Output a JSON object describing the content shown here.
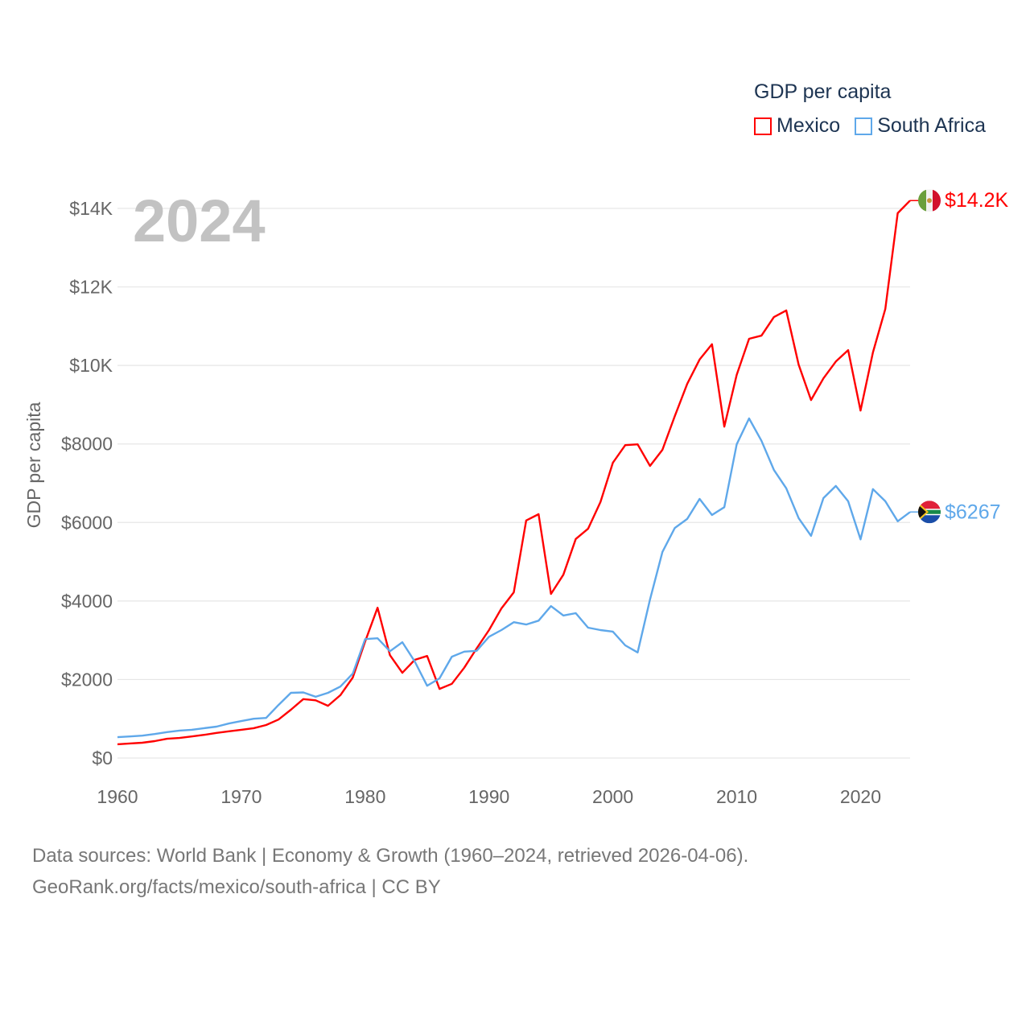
{
  "chart_data": {
    "type": "line",
    "title": "2024",
    "ylabel": "GDP per capita",
    "xlabel": "",
    "xlim": [
      1960,
      2024
    ],
    "ylim": [
      0,
      14000
    ],
    "grid": true,
    "x_ticks": [
      1960,
      1970,
      1980,
      1990,
      2000,
      2010,
      2020
    ],
    "x_tick_labels": [
      "1960",
      "1970",
      "1980",
      "1990",
      "2000",
      "2010",
      "2020"
    ],
    "y_ticks": [
      0,
      2000,
      4000,
      6000,
      8000,
      10000,
      12000,
      14000
    ],
    "y_tick_labels": [
      "$0",
      "$2000",
      "$4000",
      "$6000",
      "$8000",
      "$10K",
      "$12K",
      "$14K"
    ],
    "legend": {
      "title": "GDP per capita",
      "placement": "top-right"
    },
    "x": [
      1960,
      1961,
      1962,
      1963,
      1964,
      1965,
      1966,
      1967,
      1968,
      1969,
      1970,
      1971,
      1972,
      1973,
      1974,
      1975,
      1976,
      1977,
      1978,
      1979,
      1980,
      1981,
      1982,
      1983,
      1984,
      1985,
      1986,
      1987,
      1988,
      1989,
      1990,
      1991,
      1992,
      1993,
      1994,
      1995,
      1996,
      1997,
      1998,
      1999,
      2000,
      2001,
      2002,
      2003,
      2004,
      2005,
      2006,
      2007,
      2008,
      2009,
      2010,
      2011,
      2012,
      2013,
      2014,
      2015,
      2016,
      2017,
      2018,
      2019,
      2020,
      2021,
      2022,
      2023,
      2024
    ],
    "series": [
      {
        "name": "Mexico",
        "color": "#ff0000",
        "end_label": "$14.2K",
        "flag": "mexico-flag",
        "values": [
          350,
          370,
          390,
          430,
          490,
          510,
          550,
          590,
          640,
          680,
          720,
          760,
          840,
          980,
          1230,
          1500,
          1470,
          1330,
          1600,
          2050,
          2970,
          3830,
          2620,
          2170,
          2500,
          2600,
          1760,
          1890,
          2300,
          2790,
          3260,
          3810,
          4220,
          6050,
          6210,
          4180,
          4670,
          5580,
          5840,
          6520,
          7520,
          7970,
          7990,
          7440,
          7850,
          8710,
          9530,
          10150,
          10540,
          8440,
          9760,
          10680,
          10760,
          11230,
          11400,
          10020,
          9120,
          9670,
          10100,
          10390,
          8850,
          10330,
          11440,
          13880,
          14200
        ]
      },
      {
        "name": "South Africa",
        "color": "#5fa8ea",
        "end_label": "$6267",
        "flag": "south-africa-flag",
        "values": [
          530,
          550,
          570,
          610,
          660,
          700,
          720,
          760,
          800,
          880,
          940,
          1000,
          1020,
          1350,
          1660,
          1670,
          1560,
          1660,
          1820,
          2150,
          3030,
          3050,
          2720,
          2950,
          2460,
          1840,
          2030,
          2580,
          2710,
          2730,
          3090,
          3260,
          3460,
          3400,
          3500,
          3870,
          3630,
          3690,
          3320,
          3260,
          3220,
          2870,
          2690,
          4040,
          5250,
          5860,
          6090,
          6600,
          6190,
          6390,
          7990,
          8650,
          8080,
          7340,
          6870,
          6110,
          5660,
          6620,
          6930,
          6540,
          5570,
          6850,
          6540,
          6030,
          6267
        ]
      }
    ]
  },
  "footer": {
    "line1": "Data sources: World Bank | Economy & Growth (1960–2024, retrieved 2026-04-06).",
    "line2": "GeoRank.org/facts/mexico/south-africa | CC BY"
  }
}
